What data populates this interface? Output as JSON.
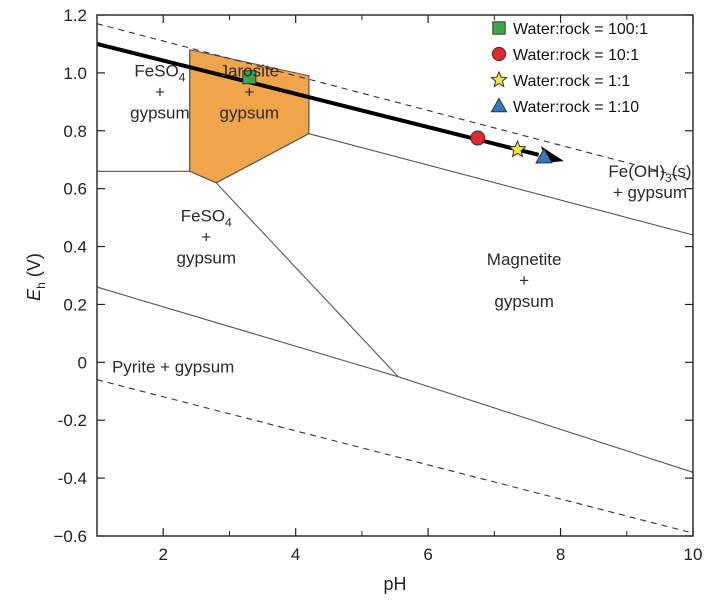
{
  "chart_data": {
    "type": "line",
    "x_axis": {
      "label": "pH",
      "range": [
        1,
        10
      ],
      "ticks": [
        2,
        4,
        6,
        8,
        10
      ],
      "tick_labels": [
        "2",
        "4",
        "6",
        "8",
        "10"
      ],
      "minor_ticks": [
        3,
        5,
        7,
        9
      ]
    },
    "y_axis": {
      "label_main": "E",
      "label_sub": "h",
      "label_unit": " (V)",
      "range": [
        -0.6,
        1.2
      ],
      "ticks": [
        -0.6,
        -0.4,
        -0.2,
        0,
        0.2,
        0.4,
        0.6,
        0.8,
        1.0,
        1.2
      ],
      "tick_labels": [
        "−0.6",
        "-0.4",
        "-0.2",
        "0",
        "0.2",
        "0.4",
        "0.6",
        "0.8",
        "1.0",
        "1.2"
      ]
    },
    "boundaries": [
      {
        "style": "dashed",
        "points": [
          [
            1,
            1.17
          ],
          [
            10,
            0.63
          ]
        ]
      },
      {
        "style": "dashed",
        "points": [
          [
            1,
            -0.06
          ],
          [
            10,
            -0.59
          ]
        ]
      },
      {
        "style": "solid",
        "points": [
          [
            1,
            0.66
          ],
          [
            2.4,
            0.66
          ]
        ]
      },
      {
        "style": "solid",
        "points": [
          [
            2.4,
            1.08
          ],
          [
            2.4,
            0.66
          ]
        ]
      },
      {
        "style": "solid",
        "points": [
          [
            2.4,
            0.66
          ],
          [
            2.8,
            0.62
          ]
        ]
      },
      {
        "style": "solid",
        "points": [
          [
            2.8,
            0.62
          ],
          [
            4.2,
            0.79
          ]
        ]
      },
      {
        "style": "solid",
        "points": [
          [
            4.2,
            0.79
          ],
          [
            4.2,
            0.99
          ]
        ]
      },
      {
        "style": "solid",
        "points": [
          [
            4.2,
            0.79
          ],
          [
            10,
            0.44
          ]
        ]
      },
      {
        "style": "solid",
        "points": [
          [
            2.8,
            0.62
          ],
          [
            5.55,
            -0.05
          ]
        ]
      },
      {
        "style": "solid",
        "points": [
          [
            1,
            0.26
          ],
          [
            5.55,
            -0.05
          ]
        ]
      },
      {
        "style": "solid",
        "points": [
          [
            5.55,
            -0.05
          ],
          [
            10,
            -0.38
          ]
        ]
      }
    ],
    "jarosite_region": {
      "fill": "#f0a54a",
      "points": [
        [
          2.4,
          1.08
        ],
        [
          4.2,
          0.99
        ],
        [
          4.2,
          0.79
        ],
        [
          2.8,
          0.62
        ],
        [
          2.4,
          0.66
        ]
      ]
    },
    "trend_arrow": {
      "points": [
        [
          1,
          1.1
        ],
        [
          8.05,
          0.695
        ]
      ],
      "color": "#000000"
    },
    "series": [
      {
        "name": "Water:rock = 100:1",
        "marker": "square",
        "color": "#3aa54a",
        "x": 3.3,
        "y": 0.985
      },
      {
        "name": "Water:rock = 10:1",
        "marker": "circle",
        "color": "#e0282e",
        "x": 6.75,
        "y": 0.775
      },
      {
        "name": "Water:rock = 1:1",
        "marker": "star",
        "color": "#f3e63a",
        "x": 7.35,
        "y": 0.735
      },
      {
        "name": "Water:rock = 1:10",
        "marker": "triangle",
        "color": "#2f78c4",
        "x": 7.75,
        "y": 0.71
      }
    ],
    "regions": [
      {
        "id": "feso4-upper",
        "lines": [
          "FeSO",
          "+",
          "gypsum"
        ],
        "sub": "4",
        "x": 1.95,
        "y": 0.935
      },
      {
        "id": "jarosite",
        "lines": [
          "Jarosite",
          "+",
          "gypsum"
        ],
        "x": 3.3,
        "y": 0.935
      },
      {
        "id": "feso4-lower",
        "lines": [
          "FeSO",
          "+",
          "gypsum"
        ],
        "sub": "4",
        "x": 2.65,
        "y": 0.435
      },
      {
        "id": "magnetite",
        "lines": [
          "Magnetite",
          "+",
          "gypsum"
        ],
        "x": 7.45,
        "y": 0.285
      },
      {
        "id": "pyrite",
        "lines": [
          "Pyrite + gypsum"
        ],
        "x": 2.15,
        "y": -0.015
      },
      {
        "id": "feoh3",
        "lines": [
          "Fe(OH)",
          "+  gypsum"
        ],
        "sub": "3",
        "suffix": "(s)",
        "x": 9.35,
        "y": 0.625
      }
    ],
    "legend_position": "top-right",
    "grid": false
  }
}
